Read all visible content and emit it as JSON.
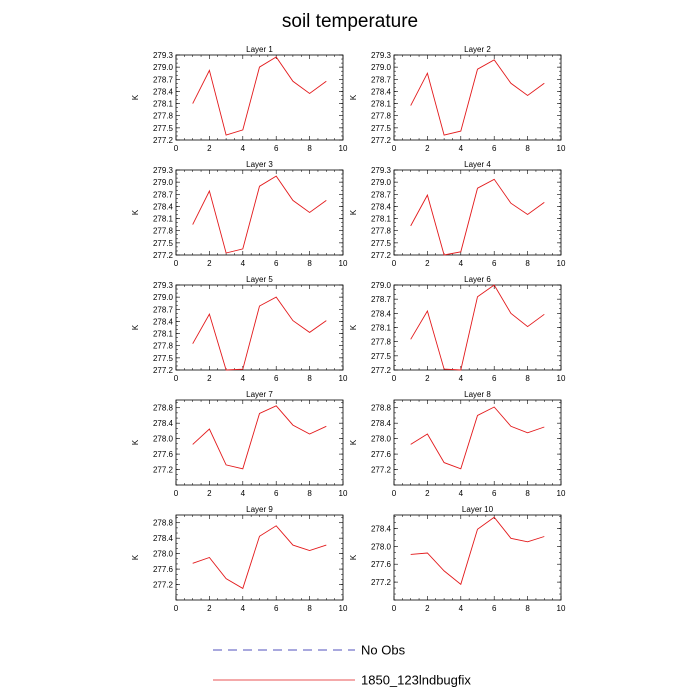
{
  "figure_title": "soil temperature",
  "legend": [
    {
      "label": "No Obs",
      "color": "#1a1aa6",
      "style": "dashed"
    },
    {
      "label": "1850_123lndbugfix",
      "color": "#e31a1c",
      "style": "solid"
    }
  ],
  "series_color": "#e31a1c",
  "chart_data": [
    {
      "type": "line",
      "title": "Layer 1",
      "ylabel": "K",
      "xlim": [
        0,
        10
      ],
      "ylim": [
        277.2,
        279.3
      ],
      "xticks": [
        0,
        2,
        4,
        6,
        8,
        10
      ],
      "yticks": [
        "277.2",
        "277.5",
        "277.8",
        "278.1",
        "278.4",
        "278.7",
        "279.0",
        "279.3"
      ],
      "x": [
        1,
        2,
        3,
        4,
        5,
        6,
        7,
        8,
        9
      ],
      "values": [
        278.1,
        278.92,
        277.32,
        277.45,
        279.0,
        279.25,
        278.65,
        278.35,
        278.65
      ]
    },
    {
      "type": "line",
      "title": "Layer 2",
      "ylabel": "K",
      "xlim": [
        0,
        10
      ],
      "ylim": [
        277.2,
        279.3
      ],
      "xticks": [
        0,
        2,
        4,
        6,
        8,
        10
      ],
      "yticks": [
        "277.2",
        "277.5",
        "277.8",
        "278.1",
        "278.4",
        "278.7",
        "279.0",
        "279.3"
      ],
      "x": [
        1,
        2,
        3,
        4,
        5,
        6,
        7,
        8,
        9
      ],
      "values": [
        278.05,
        278.85,
        277.32,
        277.42,
        278.95,
        279.18,
        278.6,
        278.3,
        278.6
      ]
    },
    {
      "type": "line",
      "title": "Layer 3",
      "ylabel": "K",
      "xlim": [
        0,
        10
      ],
      "ylim": [
        277.2,
        279.3
      ],
      "xticks": [
        0,
        2,
        4,
        6,
        8,
        10
      ],
      "yticks": [
        "277.2",
        "277.5",
        "277.8",
        "278.1",
        "278.4",
        "278.7",
        "279.0",
        "279.3"
      ],
      "x": [
        1,
        2,
        3,
        4,
        5,
        6,
        7,
        8,
        9
      ],
      "values": [
        277.95,
        278.78,
        277.25,
        277.35,
        278.9,
        279.15,
        278.55,
        278.25,
        278.55
      ]
    },
    {
      "type": "line",
      "title": "Layer 4",
      "ylabel": "K",
      "xlim": [
        0,
        10
      ],
      "ylim": [
        277.2,
        279.3
      ],
      "xticks": [
        0,
        2,
        4,
        6,
        8,
        10
      ],
      "yticks": [
        "277.2",
        "277.5",
        "277.8",
        "278.1",
        "278.4",
        "278.7",
        "279.0",
        "279.3"
      ],
      "x": [
        1,
        2,
        3,
        4,
        5,
        6,
        7,
        8,
        9
      ],
      "values": [
        277.92,
        278.68,
        277.2,
        277.28,
        278.85,
        279.07,
        278.48,
        278.2,
        278.5
      ]
    },
    {
      "type": "line",
      "title": "Layer 5",
      "ylabel": "K",
      "xlim": [
        0,
        10
      ],
      "ylim": [
        277.2,
        279.3
      ],
      "xticks": [
        0,
        2,
        4,
        6,
        8,
        10
      ],
      "yticks": [
        "277.2",
        "277.5",
        "277.8",
        "278.1",
        "278.4",
        "278.7",
        "279.0",
        "279.3"
      ],
      "x": [
        1,
        2,
        3,
        4,
        5,
        6,
        7,
        8,
        9
      ],
      "values": [
        277.85,
        278.58,
        277.2,
        277.22,
        278.78,
        279.0,
        278.42,
        278.13,
        278.42
      ]
    },
    {
      "type": "line",
      "title": "Layer 6",
      "ylabel": "K",
      "xlim": [
        0,
        10
      ],
      "ylim": [
        277.2,
        279.0
      ],
      "xticks": [
        0,
        2,
        4,
        6,
        8,
        10
      ],
      "yticks": [
        "277.2",
        "277.5",
        "277.8",
        "278.1",
        "278.4",
        "278.7",
        "279.0"
      ],
      "x": [
        1,
        2,
        3,
        4,
        5,
        6,
        7,
        8,
        9
      ],
      "values": [
        277.85,
        278.45,
        277.22,
        277.2,
        278.75,
        279.0,
        278.4,
        278.12,
        278.38
      ]
    },
    {
      "type": "line",
      "title": "Layer 7",
      "ylabel": "K",
      "xlim": [
        0,
        10
      ],
      "ylim": [
        276.8,
        279.0
      ],
      "xticks": [
        0,
        2,
        4,
        6,
        8,
        10
      ],
      "yticks": [
        "277.2",
        "277.6",
        "278.0",
        "278.4",
        "278.8"
      ],
      "x": [
        1,
        2,
        3,
        4,
        5,
        6,
        7,
        8,
        9
      ],
      "values": [
        277.85,
        278.25,
        277.32,
        277.22,
        278.65,
        278.85,
        278.35,
        278.12,
        278.32
      ]
    },
    {
      "type": "line",
      "title": "Layer 8",
      "ylabel": "K",
      "xlim": [
        0,
        10
      ],
      "ylim": [
        276.8,
        279.0
      ],
      "xticks": [
        0,
        2,
        4,
        6,
        8,
        10
      ],
      "yticks": [
        "277.2",
        "277.6",
        "278.0",
        "278.4",
        "278.8"
      ],
      "x": [
        1,
        2,
        3,
        4,
        5,
        6,
        7,
        8,
        9
      ],
      "values": [
        277.85,
        278.12,
        277.38,
        277.22,
        278.6,
        278.82,
        278.32,
        278.15,
        278.3
      ]
    },
    {
      "type": "line",
      "title": "Layer 9",
      "ylabel": "K",
      "xlim": [
        0,
        10
      ],
      "ylim": [
        276.8,
        279.0
      ],
      "xticks": [
        0,
        2,
        4,
        6,
        8,
        10
      ],
      "yticks": [
        "277.2",
        "277.6",
        "278.0",
        "278.4",
        "278.8"
      ],
      "x": [
        1,
        2,
        3,
        4,
        5,
        6,
        7,
        8,
        9
      ],
      "values": [
        277.75,
        277.9,
        277.35,
        277.1,
        278.45,
        278.72,
        278.22,
        278.08,
        278.22
      ]
    },
    {
      "type": "line",
      "title": "Layer 10",
      "ylabel": "K",
      "xlim": [
        0,
        10
      ],
      "ylim": [
        276.8,
        278.7
      ],
      "xticks": [
        0,
        2,
        4,
        6,
        8,
        10
      ],
      "yticks": [
        "277.2",
        "277.6",
        "278.0",
        "278.4"
      ],
      "x": [
        1,
        2,
        3,
        4,
        5,
        6,
        7,
        8,
        9
      ],
      "values": [
        277.82,
        277.85,
        277.45,
        277.15,
        278.38,
        278.65,
        278.18,
        278.1,
        278.22
      ]
    }
  ]
}
